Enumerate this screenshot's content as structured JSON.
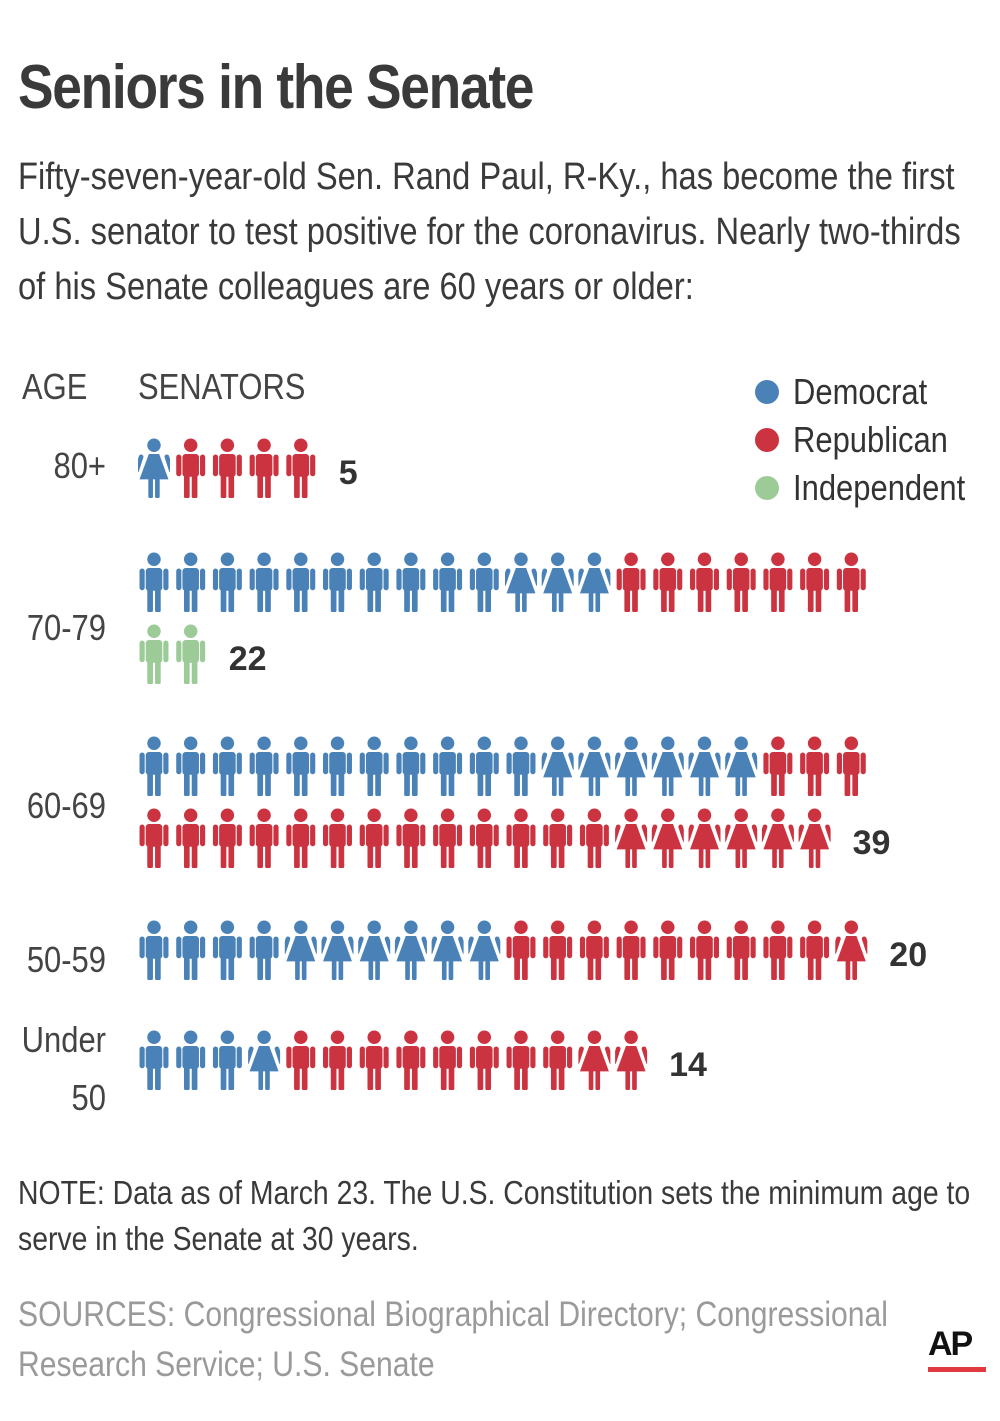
{
  "title": "Seniors in the Senate",
  "subtitle": "Fifty-seven-year-old Sen. Rand Paul, R-Ky., has become the first U.S.  senator to test positive for the coronavirus. Nearly two-thirds of his Senate colleagues are 60 years or older:",
  "headers": {
    "age": "AGE",
    "senators": "SENATORS"
  },
  "legend": [
    {
      "label": "Democrat",
      "color": "#4a82b8"
    },
    {
      "label": "Republican",
      "color": "#cc3340"
    },
    {
      "label": "Independent",
      "color": "#9ccb98"
    }
  ],
  "colors": {
    "D": "#4a82b8",
    "R": "#cc3340",
    "I": "#9ccb98"
  },
  "chart_data": {
    "type": "pictogram",
    "unit": "senator",
    "categories": [
      "80+",
      "70-79",
      "60-69",
      "50-59",
      "Under 50"
    ],
    "totals": [
      5,
      22,
      39,
      20,
      14
    ],
    "groups": [
      {
        "age": "80+",
        "total": 5,
        "breakdown": [
          {
            "party": "D",
            "gender": "F",
            "count": 1
          },
          {
            "party": "R",
            "gender": "M",
            "count": 4
          }
        ]
      },
      {
        "age": "70-79",
        "total": 22,
        "breakdown": [
          {
            "party": "D",
            "gender": "M",
            "count": 10
          },
          {
            "party": "D",
            "gender": "F",
            "count": 3
          },
          {
            "party": "R",
            "gender": "M",
            "count": 7
          },
          {
            "party": "I",
            "gender": "M",
            "count": 2
          }
        ]
      },
      {
        "age": "60-69",
        "total": 39,
        "breakdown": [
          {
            "party": "D",
            "gender": "M",
            "count": 11
          },
          {
            "party": "D",
            "gender": "F",
            "count": 6
          },
          {
            "party": "R",
            "gender": "M",
            "count": 16
          },
          {
            "party": "R",
            "gender": "F",
            "count": 6
          }
        ]
      },
      {
        "age": "50-59",
        "total": 20,
        "breakdown": [
          {
            "party": "D",
            "gender": "M",
            "count": 4
          },
          {
            "party": "D",
            "gender": "F",
            "count": 6
          },
          {
            "party": "R",
            "gender": "M",
            "count": 9
          },
          {
            "party": "R",
            "gender": "F",
            "count": 1
          }
        ]
      },
      {
        "age": "Under 50",
        "total": 14,
        "breakdown": [
          {
            "party": "D",
            "gender": "M",
            "count": 3
          },
          {
            "party": "D",
            "gender": "F",
            "count": 1
          },
          {
            "party": "R",
            "gender": "M",
            "count": 8
          },
          {
            "party": "R",
            "gender": "F",
            "count": 2
          }
        ]
      }
    ]
  },
  "note": "NOTE: Data as of March 23. The U.S. Constitution sets the minimum age to serve in the Senate at 30 years.",
  "sources": "SOURCES: Congressional Biographical Directory; Congressional Research Service; U.S. Senate",
  "logo": "AP"
}
